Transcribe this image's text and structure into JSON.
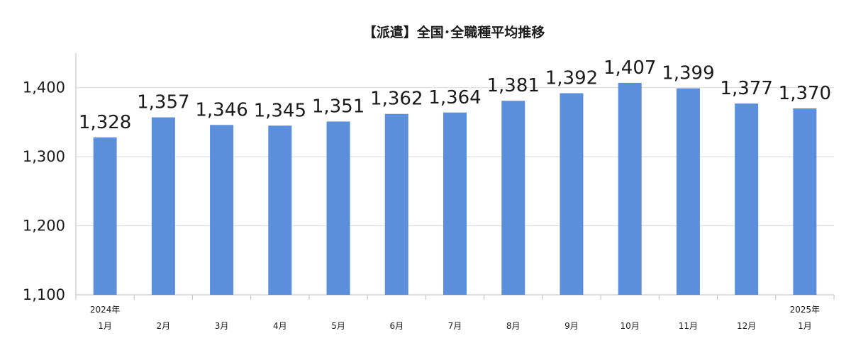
{
  "chart_data": {
    "type": "bar",
    "title": "【派遣】全国･全職種平均推移",
    "xlabel": "",
    "ylabel": "",
    "categories": [
      [
        "2024年",
        "1月"
      ],
      [
        "",
        "2月"
      ],
      [
        "",
        "3月"
      ],
      [
        "",
        "4月"
      ],
      [
        "",
        "5月"
      ],
      [
        "",
        "6月"
      ],
      [
        "",
        "7月"
      ],
      [
        "",
        "8月"
      ],
      [
        "",
        "9月"
      ],
      [
        "",
        "10月"
      ],
      [
        "",
        "11月"
      ],
      [
        "",
        "12月"
      ],
      [
        "2025年",
        "1月"
      ]
    ],
    "values": [
      1328,
      1357,
      1346,
      1345,
      1351,
      1362,
      1364,
      1381,
      1392,
      1407,
      1399,
      1377,
      1370
    ],
    "data_labels": [
      "1,328",
      "1,357",
      "1,346",
      "1,345",
      "1,351",
      "1,362",
      "1,364",
      "1,381",
      "1,392",
      "1,407",
      "1,399",
      "1,377",
      "1,370"
    ],
    "ylim": [
      1100,
      1450
    ],
    "yticks": [
      1100,
      1200,
      1300,
      1400
    ],
    "ytick_labels": [
      "1,100",
      "1,200",
      "1,300",
      "1,400"
    ],
    "grid": true,
    "legend": "none",
    "colors": {
      "bar": "#5b8fdb",
      "grid": "#d9d9d9",
      "axis": "#bfbfbf",
      "text": "#1a1a1a"
    }
  }
}
